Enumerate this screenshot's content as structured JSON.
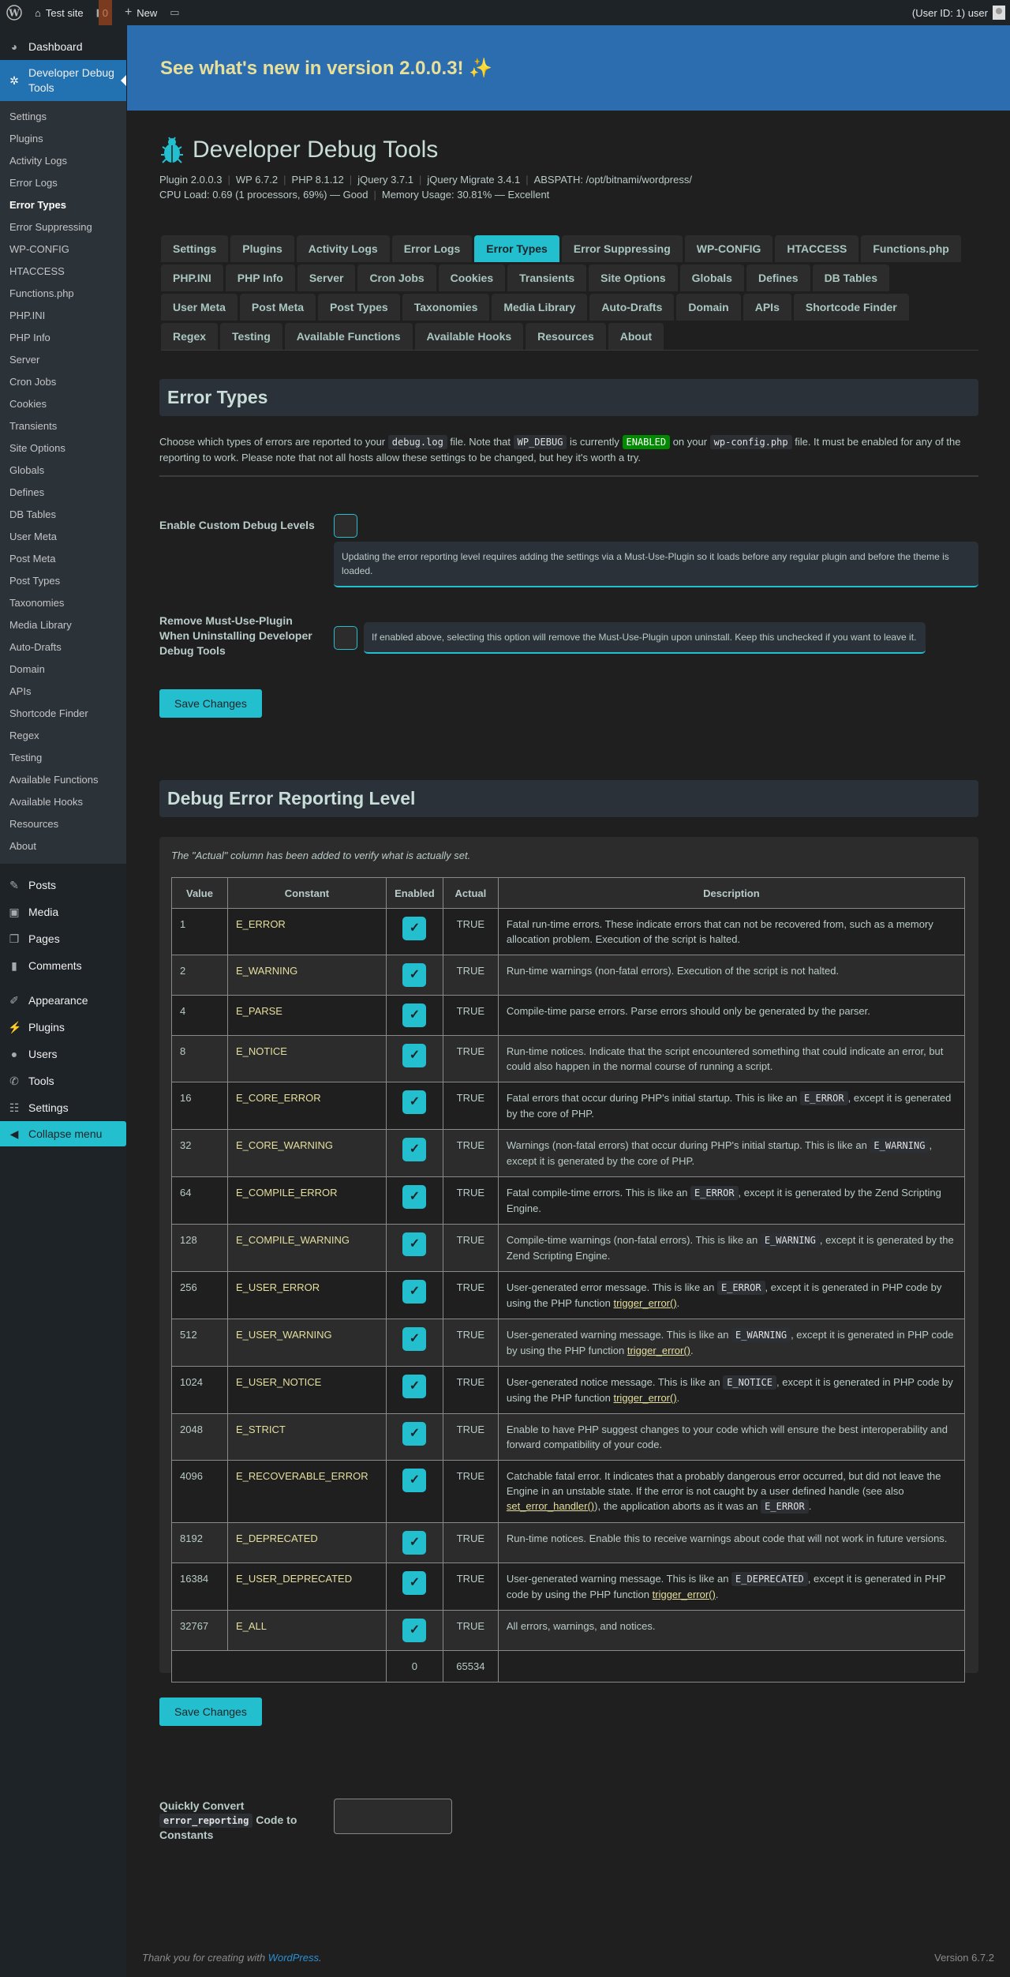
{
  "topbar": {
    "site_name": "Test site",
    "comment_count": "0",
    "new_label": "New",
    "user_label": "(User ID: 1) user"
  },
  "sidebar": {
    "dashboard": "Dashboard",
    "plugin_menu": "Developer Debug Tools",
    "submenu": [
      "Settings",
      "Plugins",
      "Activity Logs",
      "Error Logs",
      "Error Types",
      "Error Suppressing",
      "WP-CONFIG",
      "HTACCESS",
      "Functions.php",
      "PHP.INI",
      "PHP Info",
      "Server",
      "Cron Jobs",
      "Cookies",
      "Transients",
      "Site Options",
      "Globals",
      "Defines",
      "DB Tables",
      "User Meta",
      "Post Meta",
      "Post Types",
      "Taxonomies",
      "Media Library",
      "Auto-Drafts",
      "Domain",
      "APIs",
      "Shortcode Finder",
      "Regex",
      "Testing",
      "Available Functions",
      "Available Hooks",
      "Resources",
      "About"
    ],
    "current_submenu": "Error Types",
    "bottom": [
      {
        "label": "Posts",
        "icon": "pin-icon"
      },
      {
        "label": "Media",
        "icon": "media-icon"
      },
      {
        "label": "Pages",
        "icon": "pages-icon"
      },
      {
        "label": "Comments",
        "icon": "comment-icon"
      },
      {
        "label": "Appearance",
        "icon": "brush-icon"
      },
      {
        "label": "Plugins",
        "icon": "plug-icon"
      },
      {
        "label": "Users",
        "icon": "user-icon"
      },
      {
        "label": "Tools",
        "icon": "wrench-icon"
      },
      {
        "label": "Settings",
        "icon": "sliders-icon"
      }
    ],
    "collapse": "Collapse menu"
  },
  "banner": {
    "text": "See what's new in version 2.0.0.3! ✨"
  },
  "header": {
    "title": "Developer Debug Tools",
    "meta_line1": [
      "Plugin 2.0.0.3",
      "WP 6.7.2",
      "PHP 8.1.12",
      "jQuery 3.7.1",
      "jQuery Migrate 3.4.1",
      "ABSPATH: /opt/bitnami/wordpress/"
    ],
    "meta_line2": [
      "CPU Load: 0.69 (1 processors, 69%) — Good",
      "Memory Usage: 30.81% — Excellent"
    ]
  },
  "tabs": [
    [
      "Settings",
      "Plugins",
      "Activity Logs",
      "Error Logs",
      "Error Types",
      "Error Suppressing",
      "WP-CONFIG",
      "HTACCESS",
      "Functions.php"
    ],
    [
      "PHP.INI",
      "PHP Info",
      "Server",
      "Cron Jobs",
      "Cookies",
      "Transients",
      "Site Options",
      "Globals",
      "Defines",
      "DB Tables"
    ],
    [
      "User Meta",
      "Post Meta",
      "Post Types",
      "Taxonomies",
      "Media Library",
      "Auto-Drafts",
      "Domain",
      "APIs",
      "Shortcode Finder"
    ],
    [
      "Regex",
      "Testing",
      "Available Functions",
      "Available Hooks",
      "Resources",
      "About"
    ]
  ],
  "active_tab": "Error Types",
  "error_types": {
    "heading": "Error Types",
    "intro": [
      {
        "t": "Choose which types of errors are reported to your "
      },
      {
        "code": "debug.log"
      },
      {
        "t": " file. Note that "
      },
      {
        "code": "WP_DEBUG"
      },
      {
        "t": " is currently "
      },
      {
        "badge": "ENABLED"
      },
      {
        "t": " on your "
      },
      {
        "code": "wp-config.php"
      },
      {
        "t": " file. It must be enabled for any of the reporting to work. Please note that not all hosts allow these settings to be changed, but hey it's worth a try."
      }
    ],
    "enable_custom_label": "Enable Custom Debug Levels",
    "enable_custom_checked": false,
    "enable_custom_info": "Updating the error reporting level requires adding the settings via a Must-Use-Plugin so it loads before any regular plugin and before the theme is loaded.",
    "remove_mu_label": "Remove Must-Use-Plugin When Uninstalling Developer Debug Tools",
    "remove_mu_checked": false,
    "remove_mu_info": "If enabled above, selecting this option will remove the Must-Use-Plugin upon uninstall. Keep this unchecked if you want to leave it.",
    "save_label": "Save Changes"
  },
  "reporting": {
    "heading": "Debug Error Reporting Level",
    "note": "The \"Actual\" column has been added to verify what is actually set.",
    "columns": [
      "Value",
      "Constant",
      "Enabled",
      "Actual",
      "Description"
    ],
    "rows": [
      {
        "value": "1",
        "constant": "E_ERROR",
        "enabled": true,
        "actual": "TRUE",
        "desc": [
          {
            "t": "Fatal run-time errors. These indicate errors that can not be recovered from, such as a memory allocation problem. Execution of the script is halted."
          }
        ]
      },
      {
        "value": "2",
        "constant": "E_WARNING",
        "enabled": true,
        "actual": "TRUE",
        "desc": [
          {
            "t": "Run-time warnings (non-fatal errors). Execution of the script is not halted."
          }
        ]
      },
      {
        "value": "4",
        "constant": "E_PARSE",
        "enabled": true,
        "actual": "TRUE",
        "desc": [
          {
            "t": "Compile-time parse errors. Parse errors should only be generated by the parser."
          }
        ]
      },
      {
        "value": "8",
        "constant": "E_NOTICE",
        "enabled": true,
        "actual": "TRUE",
        "desc": [
          {
            "t": "Run-time notices. Indicate that the script encountered something that could indicate an error, but could also happen in the normal course of running a script."
          }
        ]
      },
      {
        "value": "16",
        "constant": "E_CORE_ERROR",
        "enabled": true,
        "actual": "TRUE",
        "desc": [
          {
            "t": "Fatal errors that occur during PHP's initial startup. This is like an "
          },
          {
            "code": "E_ERROR"
          },
          {
            "t": ", except it is generated by the core of PHP."
          }
        ]
      },
      {
        "value": "32",
        "constant": "E_CORE_WARNING",
        "enabled": true,
        "actual": "TRUE",
        "desc": [
          {
            "t": "Warnings (non-fatal errors) that occur during PHP's initial startup. This is like an "
          },
          {
            "code": "E_WARNING"
          },
          {
            "t": ", except it is generated by the core of PHP."
          }
        ]
      },
      {
        "value": "64",
        "constant": "E_COMPILE_ERROR",
        "enabled": true,
        "actual": "TRUE",
        "desc": [
          {
            "t": "Fatal compile-time errors. This is like an "
          },
          {
            "code": "E_ERROR"
          },
          {
            "t": ", except it is generated by the Zend Scripting Engine."
          }
        ]
      },
      {
        "value": "128",
        "constant": "E_COMPILE_WARNING",
        "enabled": true,
        "actual": "TRUE",
        "desc": [
          {
            "t": "Compile-time warnings (non-fatal errors). This is like an "
          },
          {
            "code": "E_WARNING"
          },
          {
            "t": ", except it is generated by the Zend Scripting Engine."
          }
        ]
      },
      {
        "value": "256",
        "constant": "E_USER_ERROR",
        "enabled": true,
        "actual": "TRUE",
        "desc": [
          {
            "t": "User-generated error message. This is like an "
          },
          {
            "code": "E_ERROR"
          },
          {
            "t": ", except it is generated in PHP code by using the PHP function "
          },
          {
            "link": "trigger_error()"
          },
          {
            "t": "."
          }
        ]
      },
      {
        "value": "512",
        "constant": "E_USER_WARNING",
        "enabled": true,
        "actual": "TRUE",
        "desc": [
          {
            "t": "User-generated warning message. This is like an "
          },
          {
            "code": "E_WARNING"
          },
          {
            "t": ", except it is generated in PHP code by using the PHP function "
          },
          {
            "link": "trigger_error()"
          },
          {
            "t": "."
          }
        ]
      },
      {
        "value": "1024",
        "constant": "E_USER_NOTICE",
        "enabled": true,
        "actual": "TRUE",
        "desc": [
          {
            "t": "User-generated notice message. This is like an "
          },
          {
            "code": "E_NOTICE"
          },
          {
            "t": ", except it is generated in PHP code by using the PHP function "
          },
          {
            "link": "trigger_error()"
          },
          {
            "t": "."
          }
        ]
      },
      {
        "value": "2048",
        "constant": "E_STRICT",
        "enabled": true,
        "actual": "TRUE",
        "desc": [
          {
            "t": "Enable to have PHP suggest changes to your code which will ensure the best interoperability and forward compatibility of your code."
          }
        ]
      },
      {
        "value": "4096",
        "constant": "E_RECOVERABLE_ERROR",
        "enabled": true,
        "actual": "TRUE",
        "desc": [
          {
            "t": "Catchable fatal error. It indicates that a probably dangerous error occurred, but did not leave the Engine in an unstable state. If the error is not caught by a user defined handle (see also "
          },
          {
            "link": "set_error_handler()"
          },
          {
            "t": "), the application aborts as it was an "
          },
          {
            "code": "E_ERROR"
          },
          {
            "t": "."
          }
        ]
      },
      {
        "value": "8192",
        "constant": "E_DEPRECATED",
        "enabled": true,
        "actual": "TRUE",
        "desc": [
          {
            "t": "Run-time notices. Enable this to receive warnings about code that will not work in future versions."
          }
        ]
      },
      {
        "value": "16384",
        "constant": "E_USER_DEPRECATED",
        "enabled": true,
        "actual": "TRUE",
        "desc": [
          {
            "t": "User-generated warning message. This is like an "
          },
          {
            "code": "E_DEPRECATED"
          },
          {
            "t": ", except it is generated in PHP code by using the PHP function "
          },
          {
            "link": "trigger_error()"
          },
          {
            "t": "."
          }
        ]
      },
      {
        "value": "32767",
        "constant": "E_ALL",
        "enabled": true,
        "actual": "TRUE",
        "desc": [
          {
            "t": "All errors, warnings, and notices."
          }
        ]
      }
    ],
    "total_enabled": "0",
    "total_actual": "65534",
    "save_label": "Save Changes"
  },
  "convert": {
    "label_before": "Quickly Convert",
    "label_code": "error_reporting",
    "label_after": "Code to Constants",
    "input_value": ""
  },
  "footer": {
    "thanks": "Thank you for creating with ",
    "wp_link": "WordPress",
    "period": ".",
    "version": "Version 6.7.2"
  },
  "colors": {
    "accent": "#23bfcf",
    "admin_blue": "#2271b1",
    "banner": "#2c6db0",
    "banner_text": "#e8e09a",
    "enabled_badge": "#008a00"
  }
}
